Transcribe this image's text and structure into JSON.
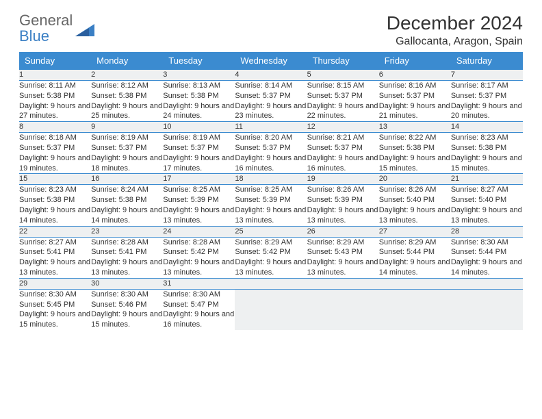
{
  "logo": {
    "line1": "General",
    "line2": "Blue"
  },
  "title": "December 2024",
  "location": "Gallocanta, Aragon, Spain",
  "colors": {
    "header_bg": "#3b8bd0",
    "header_fg": "#ffffff",
    "daynum_bg": "#eef0f1",
    "border": "#3b8bd0",
    "logo_blue": "#3a7fc4",
    "logo_gray": "#666666"
  },
  "weekday_labels": [
    "Sunday",
    "Monday",
    "Tuesday",
    "Wednesday",
    "Thursday",
    "Friday",
    "Saturday"
  ],
  "weeks": [
    [
      {
        "n": "1",
        "sr": "8:11 AM",
        "ss": "5:38 PM",
        "dl": "9 hours and 27 minutes."
      },
      {
        "n": "2",
        "sr": "8:12 AM",
        "ss": "5:38 PM",
        "dl": "9 hours and 25 minutes."
      },
      {
        "n": "3",
        "sr": "8:13 AM",
        "ss": "5:38 PM",
        "dl": "9 hours and 24 minutes."
      },
      {
        "n": "4",
        "sr": "8:14 AM",
        "ss": "5:37 PM",
        "dl": "9 hours and 23 minutes."
      },
      {
        "n": "5",
        "sr": "8:15 AM",
        "ss": "5:37 PM",
        "dl": "9 hours and 22 minutes."
      },
      {
        "n": "6",
        "sr": "8:16 AM",
        "ss": "5:37 PM",
        "dl": "9 hours and 21 minutes."
      },
      {
        "n": "7",
        "sr": "8:17 AM",
        "ss": "5:37 PM",
        "dl": "9 hours and 20 minutes."
      }
    ],
    [
      {
        "n": "8",
        "sr": "8:18 AM",
        "ss": "5:37 PM",
        "dl": "9 hours and 19 minutes."
      },
      {
        "n": "9",
        "sr": "8:19 AM",
        "ss": "5:37 PM",
        "dl": "9 hours and 18 minutes."
      },
      {
        "n": "10",
        "sr": "8:19 AM",
        "ss": "5:37 PM",
        "dl": "9 hours and 17 minutes."
      },
      {
        "n": "11",
        "sr": "8:20 AM",
        "ss": "5:37 PM",
        "dl": "9 hours and 16 minutes."
      },
      {
        "n": "12",
        "sr": "8:21 AM",
        "ss": "5:37 PM",
        "dl": "9 hours and 16 minutes."
      },
      {
        "n": "13",
        "sr": "8:22 AM",
        "ss": "5:38 PM",
        "dl": "9 hours and 15 minutes."
      },
      {
        "n": "14",
        "sr": "8:23 AM",
        "ss": "5:38 PM",
        "dl": "9 hours and 15 minutes."
      }
    ],
    [
      {
        "n": "15",
        "sr": "8:23 AM",
        "ss": "5:38 PM",
        "dl": "9 hours and 14 minutes."
      },
      {
        "n": "16",
        "sr": "8:24 AM",
        "ss": "5:38 PM",
        "dl": "9 hours and 14 minutes."
      },
      {
        "n": "17",
        "sr": "8:25 AM",
        "ss": "5:39 PM",
        "dl": "9 hours and 13 minutes."
      },
      {
        "n": "18",
        "sr": "8:25 AM",
        "ss": "5:39 PM",
        "dl": "9 hours and 13 minutes."
      },
      {
        "n": "19",
        "sr": "8:26 AM",
        "ss": "5:39 PM",
        "dl": "9 hours and 13 minutes."
      },
      {
        "n": "20",
        "sr": "8:26 AM",
        "ss": "5:40 PM",
        "dl": "9 hours and 13 minutes."
      },
      {
        "n": "21",
        "sr": "8:27 AM",
        "ss": "5:40 PM",
        "dl": "9 hours and 13 minutes."
      }
    ],
    [
      {
        "n": "22",
        "sr": "8:27 AM",
        "ss": "5:41 PM",
        "dl": "9 hours and 13 minutes."
      },
      {
        "n": "23",
        "sr": "8:28 AM",
        "ss": "5:41 PM",
        "dl": "9 hours and 13 minutes."
      },
      {
        "n": "24",
        "sr": "8:28 AM",
        "ss": "5:42 PM",
        "dl": "9 hours and 13 minutes."
      },
      {
        "n": "25",
        "sr": "8:29 AM",
        "ss": "5:42 PM",
        "dl": "9 hours and 13 minutes."
      },
      {
        "n": "26",
        "sr": "8:29 AM",
        "ss": "5:43 PM",
        "dl": "9 hours and 13 minutes."
      },
      {
        "n": "27",
        "sr": "8:29 AM",
        "ss": "5:44 PM",
        "dl": "9 hours and 14 minutes."
      },
      {
        "n": "28",
        "sr": "8:30 AM",
        "ss": "5:44 PM",
        "dl": "9 hours and 14 minutes."
      }
    ],
    [
      {
        "n": "29",
        "sr": "8:30 AM",
        "ss": "5:45 PM",
        "dl": "9 hours and 15 minutes."
      },
      {
        "n": "30",
        "sr": "8:30 AM",
        "ss": "5:46 PM",
        "dl": "9 hours and 15 minutes."
      },
      {
        "n": "31",
        "sr": "8:30 AM",
        "ss": "5:47 PM",
        "dl": "9 hours and 16 minutes."
      },
      null,
      null,
      null,
      null
    ]
  ],
  "labels": {
    "sunrise": "Sunrise: ",
    "sunset": "Sunset: ",
    "daylight": "Daylight: "
  }
}
